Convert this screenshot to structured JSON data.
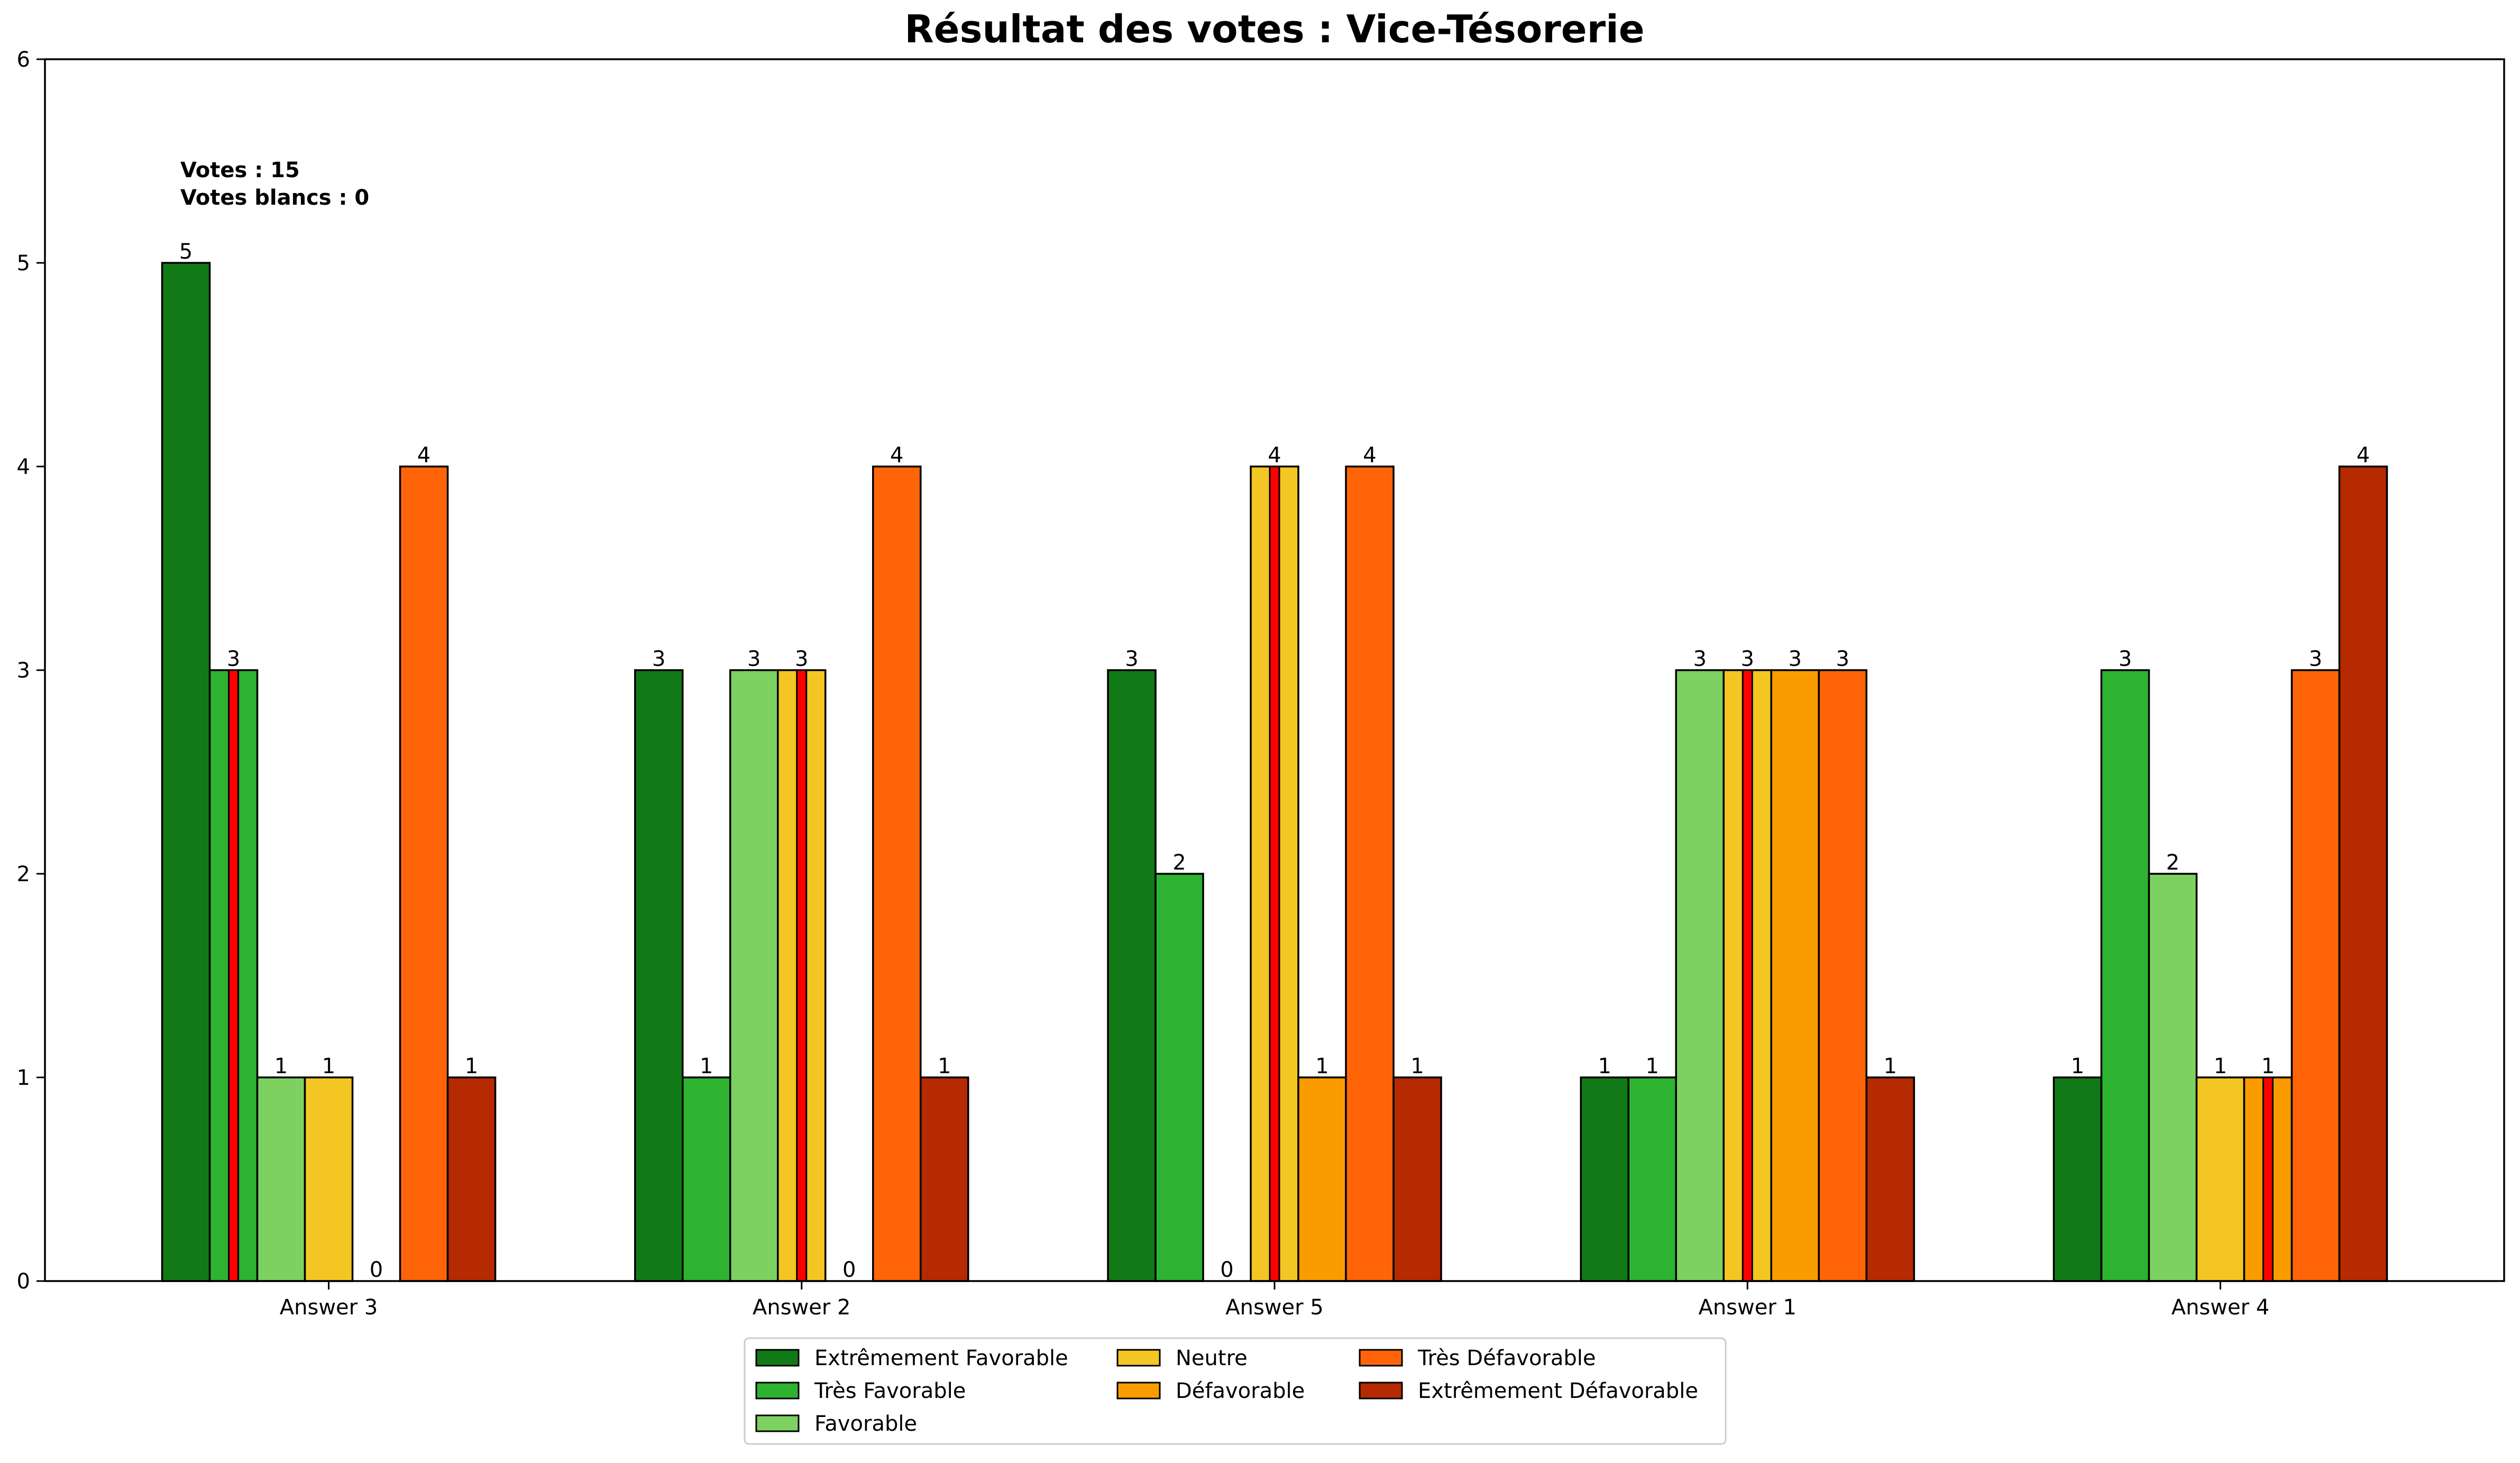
{
  "chart_data": {
    "type": "bar",
    "title": "Résultat des votes : Vice-Tésorerie",
    "xlabel": "",
    "ylabel": "",
    "ylim": [
      0,
      6
    ],
    "yticks": [
      0,
      1,
      2,
      3,
      4,
      5,
      6
    ],
    "grid": false,
    "categories": [
      "Answer 3",
      "Answer 2",
      "Answer 5",
      "Answer 1",
      "Answer 4"
    ],
    "series": [
      {
        "name": "Extrêmement Favorable",
        "color": "#117a16",
        "values": [
          5,
          3,
          3,
          1,
          1
        ]
      },
      {
        "name": "Très Favorable",
        "color": "#2eb231",
        "values": [
          3,
          1,
          2,
          1,
          3
        ]
      },
      {
        "name": "Favorable",
        "color": "#7dd160",
        "values": [
          1,
          3,
          0,
          3,
          2
        ]
      },
      {
        "name": "Neutre",
        "color": "#f3c623",
        "values": [
          1,
          3,
          4,
          3,
          1
        ]
      },
      {
        "name": "Défavorable",
        "color": "#fa9c00",
        "values": [
          0,
          0,
          1,
          3,
          1
        ]
      },
      {
        "name": "Très Défavorable",
        "color": "#ff6508",
        "values": [
          4,
          4,
          4,
          3,
          3
        ]
      },
      {
        "name": "Extrêmement Défavorable",
        "color": "#b52a00",
        "values": [
          1,
          1,
          1,
          1,
          4
        ]
      }
    ],
    "median_markers": [
      {
        "category": "Answer 3",
        "series": "Très Favorable"
      },
      {
        "category": "Answer 2",
        "series": "Neutre"
      },
      {
        "category": "Answer 5",
        "series": "Neutre"
      },
      {
        "category": "Answer 1",
        "series": "Neutre"
      },
      {
        "category": "Answer 4",
        "series": "Défavorable"
      }
    ],
    "median_marker_color": "#ff0000",
    "annotations": [
      "Votes : 15",
      "Votes blancs : 0"
    ],
    "legend": {
      "placement": "bottom-center",
      "columns": 3
    }
  }
}
